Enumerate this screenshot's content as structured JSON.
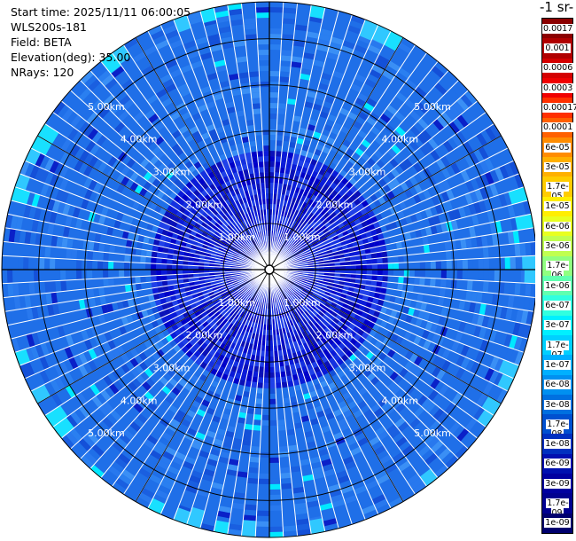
{
  "header": {
    "start_time": "Start time: 2025/11/11 06:00:05",
    "instrument": "WLS200s-181",
    "field": "Field: BETA",
    "elevation": "Elevation(deg): 35.00",
    "nrays": "NRays: 120"
  },
  "colorbar": {
    "title": "-1 sr-",
    "labels": [
      "0.0017",
      "0.001",
      "0.0006",
      "0.0003",
      "0.00017",
      "0.0001",
      "6e-05",
      "3e-05",
      "1.7e-05",
      "1e-05",
      "6e-06",
      "3e-06",
      "1.7e-06",
      "1e-06",
      "6e-07",
      "3e-07",
      "1.7e-07",
      "1e-07",
      "6e-08",
      "3e-08",
      "1.7e-08",
      "1e-08",
      "6e-09",
      "3e-09",
      "1.7e-09",
      "1e-09"
    ],
    "colors": [
      "#8b0000",
      "#b00000",
      "#d40000",
      "#f00000",
      "#ff3000",
      "#ff6000",
      "#ff8c00",
      "#ffb000",
      "#ffcc00",
      "#ffee00",
      "#e8ff20",
      "#c0ff50",
      "#90ff80",
      "#60ffb0",
      "#30ffe0",
      "#00f0ff",
      "#00d0ff",
      "#00b0ff",
      "#0090f0",
      "#0070e0",
      "#0050d0",
      "#0030c0",
      "#0010b0",
      "#0000a0",
      "#000090",
      "#00006e"
    ]
  },
  "chart_data": {
    "type": "ppi",
    "range_rings_km": [
      1,
      2,
      3,
      4,
      5
    ],
    "max_range_km": 5.8,
    "ring_labels": [
      "1.00km",
      "2.00km",
      "3.00km",
      "4.00km",
      "5.00km"
    ],
    "nrays": 120,
    "elevation_deg": 35.0,
    "field": "BETA",
    "dominant_color": "#1f6fe8",
    "near_range_color": "#0a1ad8"
  }
}
